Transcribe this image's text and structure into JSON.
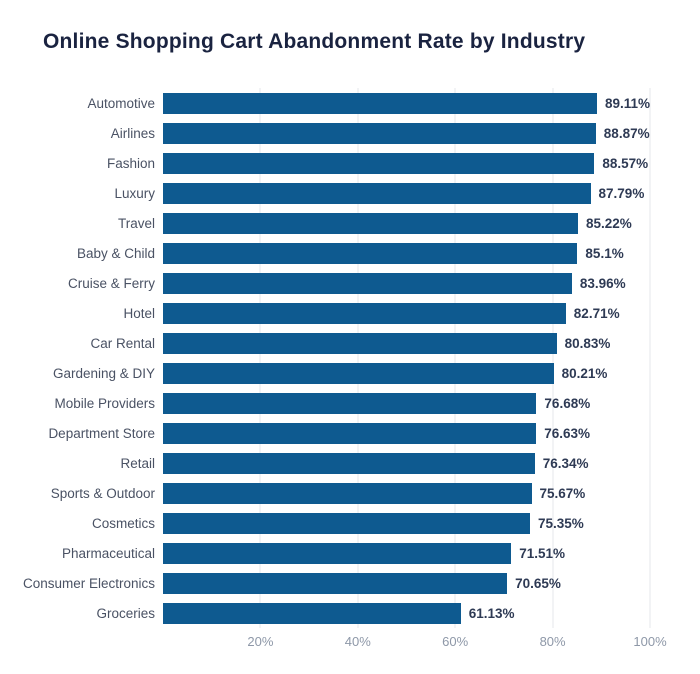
{
  "colors": {
    "bar": "#0E5A90",
    "title": "#1A2340",
    "category_label": "#4A5264",
    "value_label": "#2E3A54",
    "tick_label": "#8E98A8",
    "gridline": "#E4E7EB",
    "background": "#FFFFFF"
  },
  "chart_data": {
    "type": "bar",
    "orientation": "horizontal",
    "title": "Online Shopping Cart Abandonment Rate by Industry",
    "categories": [
      "Automotive",
      "Airlines",
      "Fashion",
      "Luxury",
      "Travel",
      "Baby & Child",
      "Cruise & Ferry",
      "Hotel",
      "Car Rental",
      "Gardening & DIY",
      "Mobile Providers",
      "Department Store",
      "Retail",
      "Sports & Outdoor",
      "Cosmetics",
      "Pharmaceutical",
      "Consumer Electronics",
      "Groceries"
    ],
    "values": [
      89.11,
      88.87,
      88.57,
      87.79,
      85.22,
      85.1,
      83.96,
      82.71,
      80.83,
      80.21,
      76.68,
      76.63,
      76.34,
      75.67,
      75.35,
      71.51,
      70.65,
      61.13
    ],
    "value_labels": [
      "89.11%",
      "88.87%",
      "88.57%",
      "87.79%",
      "85.22%",
      "85.1%",
      "83.96%",
      "82.71%",
      "80.83%",
      "80.21%",
      "76.68%",
      "76.63%",
      "76.34%",
      "75.67%",
      "75.35%",
      "71.51%",
      "70.65%",
      "61.13%"
    ],
    "xlabel": "",
    "ylabel": "",
    "xlim": [
      0,
      100
    ],
    "x_tick_values": [
      20,
      40,
      60,
      80,
      100
    ],
    "x_ticks": [
      "20%",
      "40%",
      "60%",
      "80%",
      "100%"
    ],
    "grid": "vertical",
    "legend": "none"
  }
}
